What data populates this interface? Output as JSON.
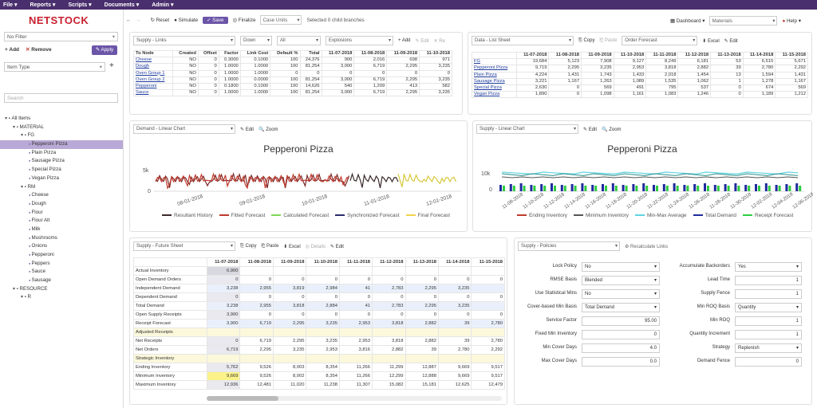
{
  "menu": [
    "File",
    "Reports",
    "Scripts",
    "Documents",
    "Admin"
  ],
  "logo": "NETSTOCK",
  "sidebar": {
    "filter": "No Filter",
    "add": "Add",
    "remove": "Remove",
    "apply": "Apply",
    "item_type": "Item Type",
    "search_placeholder": "Search",
    "tree": [
      {
        "label": "All Items",
        "lvl": 0
      },
      {
        "label": "MATERIAL",
        "lvl": 1
      },
      {
        "label": "FG",
        "lvl": 2
      },
      {
        "label": "Pepperoni Pizza",
        "lvl": 3,
        "active": true
      },
      {
        "label": "Plain Pizza",
        "lvl": 3
      },
      {
        "label": "Sausage Pizza",
        "lvl": 3
      },
      {
        "label": "Special Pizza",
        "lvl": 3
      },
      {
        "label": "Vegan Pizza",
        "lvl": 3
      },
      {
        "label": "RM",
        "lvl": 2
      },
      {
        "label": "Cheese",
        "lvl": 3
      },
      {
        "label": "Dough",
        "lvl": 3
      },
      {
        "label": "Flour",
        "lvl": 3
      },
      {
        "label": "Flour Alt",
        "lvl": 3
      },
      {
        "label": "Milk",
        "lvl": 3
      },
      {
        "label": "Mushrooms",
        "lvl": 3
      },
      {
        "label": "Onions",
        "lvl": 3
      },
      {
        "label": "Pepperoni",
        "lvl": 3
      },
      {
        "label": "Peppers",
        "lvl": 3
      },
      {
        "label": "Sauce",
        "lvl": 3
      },
      {
        "label": "Sausage",
        "lvl": 3
      },
      {
        "label": "RESOURCE",
        "lvl": 1
      },
      {
        "label": "R",
        "lvl": 2
      }
    ]
  },
  "toolbar": {
    "reset": "Reset",
    "simulate": "Simulate",
    "save": "Save",
    "finalize": "Finalize",
    "units": "Case Units",
    "selected": "Selected 0 child branches",
    "dashboard": "Dashboard",
    "materials": "Materials",
    "help": "Help"
  },
  "links": {
    "sel1": "Supply - Links",
    "sel2": "Down",
    "sel3": "All",
    "sel4": "Explosions",
    "add": "Add",
    "edit": "Edit",
    "remove": "Re",
    "headers": [
      "To Node",
      "Created",
      "Offset",
      "Factor",
      "Link Cost",
      "Default %",
      "Total",
      "11-07-2018",
      "11-08-2018",
      "11-09-2018",
      "11-10-2018"
    ],
    "rows": [
      [
        "Cheese",
        "NO",
        "0",
        "0.3000",
        "0.1000",
        "100",
        "24,376",
        "900",
        "2,016",
        "698",
        "971"
      ],
      [
        "Dough",
        "NO",
        "0",
        "1.0000",
        "1.0000",
        "100",
        "81,254",
        "3,000",
        "6,719",
        "2,295",
        "3,235"
      ],
      [
        "Oven Group 1",
        "NO",
        "0",
        "1.0000",
        "1.0000",
        "0",
        "0",
        "0",
        "0",
        "0",
        "0"
      ],
      [
        "Oven Group 2",
        "NO",
        "0",
        "1.0000",
        "0.0000",
        "100",
        "81,254",
        "3,000",
        "6,719",
        "2,295",
        "3,235"
      ],
      [
        "Pepperoni",
        "NO",
        "0",
        "0.1800",
        "0.1000",
        "100",
        "14,626",
        "540",
        "1,209",
        "413",
        "582"
      ],
      [
        "Sauce",
        "NO",
        "0",
        "1.0000",
        "1.0000",
        "100",
        "81,254",
        "3,000",
        "6,719",
        "2,295",
        "3,235"
      ]
    ]
  },
  "list": {
    "sel1": "Data - List Sheet",
    "copy": "Copy",
    "paste": "Paste",
    "sel2": "Order Forecast",
    "excel": "Excel",
    "edit": "Edit",
    "headers": [
      "",
      "11-07-2018",
      "11-08-2018",
      "11-09-2018",
      "11-10-2018",
      "11-11-2018",
      "11-12-2018",
      "11-13-2018",
      "11-14-2018",
      "11-15-2018"
    ],
    "rows": [
      [
        "FG",
        "19,684",
        "5,123",
        "7,908",
        "9,127",
        "8,249",
        "6,181",
        "53",
        "6,515",
        "5,671"
      ],
      [
        "Pepperoni Pizza",
        "9,719",
        "2,295",
        "3,235",
        "2,953",
        "3,818",
        "2,882",
        "39",
        "2,780",
        "2,292"
      ],
      [
        "Plain Pizza",
        "4,224",
        "1,431",
        "1,743",
        "1,433",
        "2,018",
        "1,454",
        "13",
        "1,594",
        "1,431"
      ],
      [
        "Sausage Pizza",
        "3,221",
        "1,167",
        "1,263",
        "1,089",
        "1,535",
        "1,062",
        "1",
        "1,278",
        "1,167"
      ],
      [
        "Special Pizza",
        "2,630",
        "0",
        "569",
        "491",
        "795",
        "537",
        "0",
        "674",
        "569"
      ],
      [
        "Vegan Pizza",
        "1,890",
        "0",
        "1,098",
        "1,161",
        "1,083",
        "1,246",
        "0",
        "1,189",
        "1,212"
      ]
    ]
  },
  "demand_chart": {
    "sel": "Demand - Linear Chart",
    "edit": "Edit",
    "zoom": "Zoom",
    "title": "Pepperoni Pizza",
    "ticks_y": [
      "5k",
      "0"
    ],
    "ticks_x": [
      "08-01-2018",
      "09-01-2018",
      "10-01-2018",
      "11-01-2018",
      "12-01-2018"
    ],
    "legend": [
      {
        "name": "Resultant History",
        "color": "#3a2a2a"
      },
      {
        "name": "Fitted Forecast",
        "color": "#c0392b"
      },
      {
        "name": "Calculated Forecast",
        "color": "#7ed957"
      },
      {
        "name": "Synchronized Forecast",
        "color": "#2c2c6e"
      },
      {
        "name": "Final Forecast",
        "color": "#f1d34a"
      }
    ]
  },
  "supply_chart": {
    "sel": "Supply - Linear Chart",
    "edit": "Edit",
    "zoom": "Zoom",
    "title": "Pepperoni Pizza",
    "ticks_y": [
      "10k",
      "0"
    ],
    "ticks_x": [
      "11-08-2018",
      "11-10-2018",
      "11-12-2018",
      "11-14-2018",
      "11-16-2018",
      "11-18-2018",
      "11-20-2018",
      "11-22-2018",
      "11-24-2018",
      "11-26-2018",
      "11-28-2018",
      "11-30-2018",
      "12-02-2018",
      "12-04-2018",
      "12-06-2018"
    ],
    "legend": [
      {
        "name": "Ending Inventory",
        "color": "#c0392b"
      },
      {
        "name": "Minimum Inventory",
        "color": "#555"
      },
      {
        "name": "Min-Max Average",
        "color": "#5fd3e0"
      },
      {
        "name": "Total Demand",
        "color": "#1f2a9e"
      },
      {
        "name": "Receipt Forecast",
        "color": "#2ecc40"
      }
    ]
  },
  "future": {
    "sel": "Supply - Future Sheet",
    "copy": "Copy",
    "paste": "Paste",
    "excel": "Excel",
    "details": "Details",
    "edit": "Edit",
    "headers": [
      "",
      "11-07-2018",
      "11-08-2018",
      "11-09-2018",
      "11-10-2018",
      "11-11-2018",
      "11-12-2018",
      "11-13-2018",
      "11-14-2018",
      "11-15-2018"
    ],
    "rows": [
      [
        "Actual Inventory",
        "6,900",
        "",
        "",
        "",
        "",
        "",
        "",
        "",
        ""
      ],
      [
        "Open Demand Orders",
        "0",
        "0",
        "0",
        "0",
        "0",
        "0",
        "0",
        "0",
        "0"
      ],
      [
        "Independent Demand",
        "3,238",
        "2,955",
        "3,819",
        "2,984",
        "41",
        "2,783",
        "2,295",
        "3,235",
        ""
      ],
      [
        "Dependent Demand",
        "0",
        "0",
        "0",
        "0",
        "0",
        "0",
        "0",
        "0",
        "0"
      ],
      [
        "Total Demand",
        "3,238",
        "2,955",
        "3,818",
        "2,884",
        "41",
        "2,783",
        "2,295",
        "3,235",
        ""
      ],
      [
        "Open Supply Receipts",
        "3,900",
        "0",
        "0",
        "0",
        "0",
        "0",
        "0",
        "0",
        "0"
      ],
      [
        "Receipt Forecast",
        "3,900",
        "6,719",
        "2,295",
        "3,235",
        "2,953",
        "3,818",
        "2,882",
        "39",
        "2,780"
      ],
      [
        "Adjusted Receipts",
        "",
        "",
        "",
        "",
        "",
        "",
        "",
        "",
        ""
      ],
      [
        "Net Receipts",
        "0",
        "6,719",
        "2,295",
        "3,235",
        "2,953",
        "3,818",
        "2,882",
        "39",
        "2,780"
      ],
      [
        "Net Orders",
        "6,719",
        "2,295",
        "3,235",
        "2,953",
        "3,816",
        "2,882",
        "39",
        "2,780",
        "2,292"
      ],
      [
        "Strategic Inventory",
        "",
        "",
        "",
        "",
        "",
        "",
        "",
        "",
        ""
      ],
      [
        "Ending Inventory",
        "5,762",
        "9,526",
        "8,003",
        "8,354",
        "11,266",
        "11,299",
        "12,887",
        "9,669",
        "9,517"
      ],
      [
        "Minimum Inventory",
        "9,669",
        "9,526",
        "8,002",
        "8,354",
        "11,266",
        "12,299",
        "12,888",
        "9,669",
        "9,517"
      ],
      [
        "Maximum Inventory",
        "12,936",
        "12,481",
        "11,020",
        "11,238",
        "11,307",
        "15,082",
        "15,181",
        "12,625",
        "12,479"
      ]
    ]
  },
  "policies": {
    "sel": "Supply - Policies",
    "recalc": "Recalculate Links",
    "left": [
      {
        "label": "Lock Policy",
        "value": "No"
      },
      {
        "label": "RMSE Basis",
        "value": "Blended"
      },
      {
        "label": "Use Statistical Mins",
        "value": "No"
      },
      {
        "label": "Cover-based Min Basis",
        "value": "Total Demand"
      },
      {
        "label": "Service Factor",
        "value": "95.00"
      },
      {
        "label": "Fixed Min Inventory",
        "value": "0"
      },
      {
        "label": "Min Cover Days",
        "value": "4.0"
      },
      {
        "label": "Max Cover Days",
        "value": "0.0"
      }
    ],
    "right": [
      {
        "label": "Accumulate Backorders",
        "value": "Yes"
      },
      {
        "label": "Lead Time",
        "value": "1"
      },
      {
        "label": "Supply Fence",
        "value": "1"
      },
      {
        "label": "Min ROQ Basis",
        "value": "Quantity"
      },
      {
        "label": "Min ROQ",
        "value": "1"
      },
      {
        "label": "Quantity Increment",
        "value": "1"
      },
      {
        "label": "Strategy",
        "value": "Replenish"
      },
      {
        "label": "Demand Fence",
        "value": "0"
      }
    ]
  }
}
